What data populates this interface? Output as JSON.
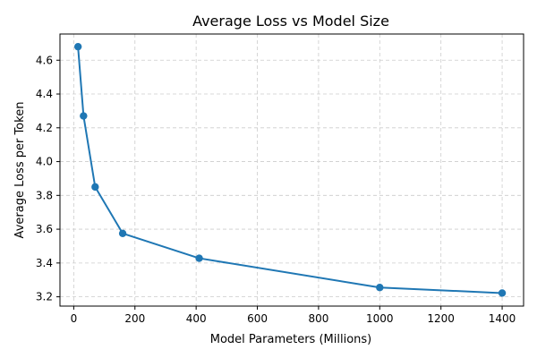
{
  "chart_data": {
    "type": "line",
    "title": "Average Loss vs Model Size",
    "xlabel": "Model Parameters (Millions)",
    "ylabel": "Average Loss per Token",
    "xlim": [
      -45,
      1470
    ],
    "ylim": [
      3.145,
      4.755
    ],
    "x_ticks": [
      0,
      200,
      400,
      600,
      800,
      1000,
      1200,
      1400
    ],
    "y_ticks": [
      3.2,
      3.4,
      3.6,
      3.8,
      4.0,
      4.2,
      4.4,
      4.6
    ],
    "grid": true,
    "series": [
      {
        "x": [
          14,
          32,
          70,
          160,
          410,
          1000,
          1400
        ],
        "y": [
          4.68,
          4.27,
          3.85,
          3.575,
          3.428,
          3.255,
          3.222
        ],
        "color": "#1f77b4",
        "marker": "circle",
        "line_style": "solid"
      }
    ]
  }
}
